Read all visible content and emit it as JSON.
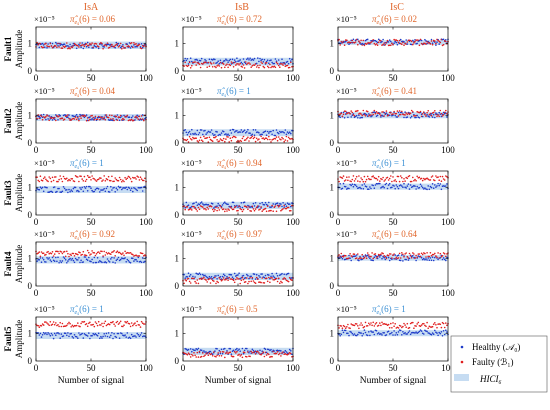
{
  "chart_data": {
    "type": "scatter",
    "column_titles": [
      "IsA",
      "IsB",
      "IsC"
    ],
    "row_labels": [
      "Fault1",
      "Fault2",
      "Fault3",
      "Fault4",
      "Fault5"
    ],
    "xlabel": "Number of signal",
    "ylabel": "Amplitude",
    "exponent_label": "×10⁻⁵",
    "x_ticks": [
      0,
      50,
      100
    ],
    "y_ticks": [
      1
    ],
    "xlim": [
      0,
      100
    ],
    "ylim": [
      0,
      1.6
    ],
    "stat_prefix": "π̂",
    "stat_sub": "e",
    "stat_sub2": "s",
    "stat_arg": "(6) = ",
    "colors": {
      "healthy": "#1f3cc8",
      "faulty": "#e01e1e",
      "band": "#c6dcf2",
      "title": "#e0652a",
      "stat_high": "#3a8fd4",
      "stat_low": "#e0652a",
      "axis": "#000000"
    },
    "series": [
      {
        "name": "Healthy (𝒜₀)",
        "key": "healthy"
      },
      {
        "name": "Faulty (ℬ₁)",
        "key": "faulty"
      },
      {
        "name": "HICI₆",
        "key": "band"
      }
    ],
    "panels": [
      {
        "row": 0,
        "col": 0,
        "stat": "0.06",
        "healthy_mean": 0.93,
        "faulty_mean": 0.92,
        "band": [
          0.8,
          1.07
        ],
        "stat_color": "low"
      },
      {
        "row": 0,
        "col": 1,
        "stat": "0.72",
        "healthy_mean": 0.36,
        "faulty_mean": 0.22,
        "band": [
          0.2,
          0.48
        ],
        "stat_color": "low"
      },
      {
        "row": 0,
        "col": 2,
        "stat": "0.02",
        "healthy_mean": 1.05,
        "faulty_mean": 1.04,
        "band": [
          0.95,
          1.12
        ],
        "stat_color": "low"
      },
      {
        "row": 1,
        "col": 0,
        "stat": "0.04",
        "healthy_mean": 0.93,
        "faulty_mean": 0.92,
        "band": [
          0.8,
          1.05
        ],
        "stat_color": "low"
      },
      {
        "row": 1,
        "col": 1,
        "stat": "1",
        "healthy_mean": 0.38,
        "faulty_mean": 0.14,
        "band": [
          0.25,
          0.5
        ],
        "stat_color": "high"
      },
      {
        "row": 1,
        "col": 2,
        "stat": "0.41",
        "healthy_mean": 1.02,
        "faulty_mean": 1.08,
        "band": [
          0.9,
          1.12
        ],
        "stat_color": "low"
      },
      {
        "row": 2,
        "col": 0,
        "stat": "1",
        "healthy_mean": 0.93,
        "faulty_mean": 1.32,
        "band": [
          0.8,
          1.05
        ],
        "stat_color": "high"
      },
      {
        "row": 2,
        "col": 1,
        "stat": "0.94",
        "healthy_mean": 0.36,
        "faulty_mean": 0.24,
        "band": [
          0.22,
          0.48
        ],
        "stat_color": "low"
      },
      {
        "row": 2,
        "col": 2,
        "stat": "1",
        "healthy_mean": 1.04,
        "faulty_mean": 1.32,
        "band": [
          0.92,
          1.14
        ],
        "stat_color": "high"
      },
      {
        "row": 3,
        "col": 0,
        "stat": "0.92",
        "healthy_mean": 0.95,
        "faulty_mean": 1.18,
        "band": [
          0.82,
          1.08
        ],
        "stat_color": "low"
      },
      {
        "row": 3,
        "col": 1,
        "stat": "0.97",
        "healthy_mean": 0.36,
        "faulty_mean": 0.2,
        "band": [
          0.22,
          0.48
        ],
        "stat_color": "low"
      },
      {
        "row": 3,
        "col": 2,
        "stat": "0.64",
        "healthy_mean": 1.02,
        "faulty_mean": 1.1,
        "band": [
          0.92,
          1.12
        ],
        "stat_color": "low"
      },
      {
        "row": 4,
        "col": 0,
        "stat": "1",
        "healthy_mean": 0.92,
        "faulty_mean": 1.34,
        "band": [
          0.8,
          1.05
        ],
        "stat_color": "high"
      },
      {
        "row": 4,
        "col": 1,
        "stat": "0.5",
        "healthy_mean": 0.35,
        "faulty_mean": 0.24,
        "band": [
          0.22,
          0.48
        ],
        "stat_color": "low"
      },
      {
        "row": 4,
        "col": 2,
        "stat": "1",
        "healthy_mean": 1.02,
        "faulty_mean": 1.3,
        "band": [
          0.9,
          1.12
        ],
        "stat_color": "high"
      }
    ]
  }
}
